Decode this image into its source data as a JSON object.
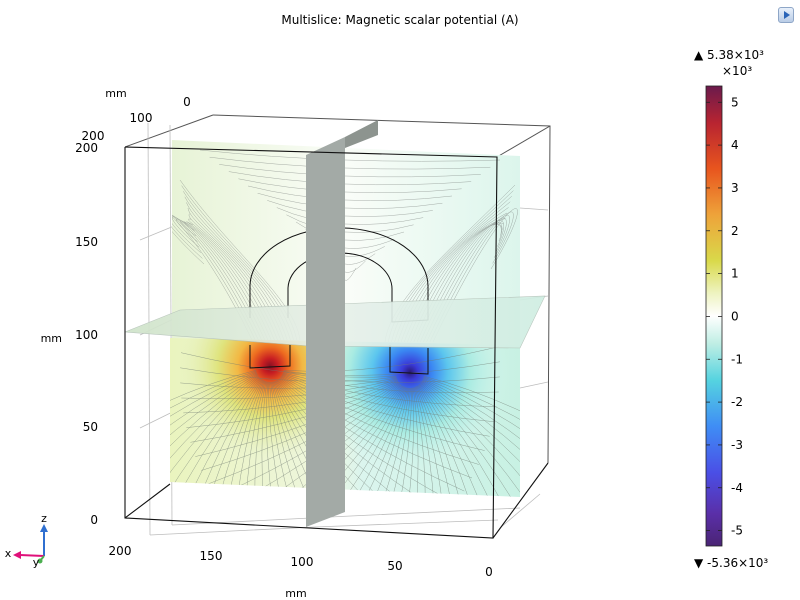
{
  "title": "Multislice: Magnetic scalar potential (A)",
  "axes": {
    "unit": "mm",
    "z_ticks": [
      "0",
      "50",
      "100",
      "150",
      "200"
    ],
    "x_ticks": [
      "200",
      "150",
      "100",
      "50",
      "0"
    ],
    "y_ticks": [
      "200",
      "100",
      "0"
    ]
  },
  "colorbar": {
    "max_label": "▲ 5.38×10³",
    "min_label": "▼ -5.36×10³",
    "multiplier": "×10³",
    "ticks": [
      "5",
      "4",
      "3",
      "2",
      "1",
      "0",
      "-1",
      "-2",
      "-3",
      "-4",
      "-5"
    ],
    "max_value": 5.38,
    "min_value": -5.36,
    "colors": [
      "#6b1a4c",
      "#b82431",
      "#e8551e",
      "#eea33a",
      "#d9d94a",
      "#eef3c0",
      "#ffffff",
      "#bfeee4",
      "#55d3e0",
      "#3f8df5",
      "#4a4fe6",
      "#5a2fa8",
      "#4a2474"
    ]
  },
  "triad": {
    "x": "x",
    "y": "y",
    "z": "z"
  },
  "colors": {
    "background": "#ffffff",
    "slice_gray": "#a3aaa6",
    "x_axis": "#e0107a",
    "y_axis": "#4caf50",
    "z_axis": "#2f6fd0"
  }
}
